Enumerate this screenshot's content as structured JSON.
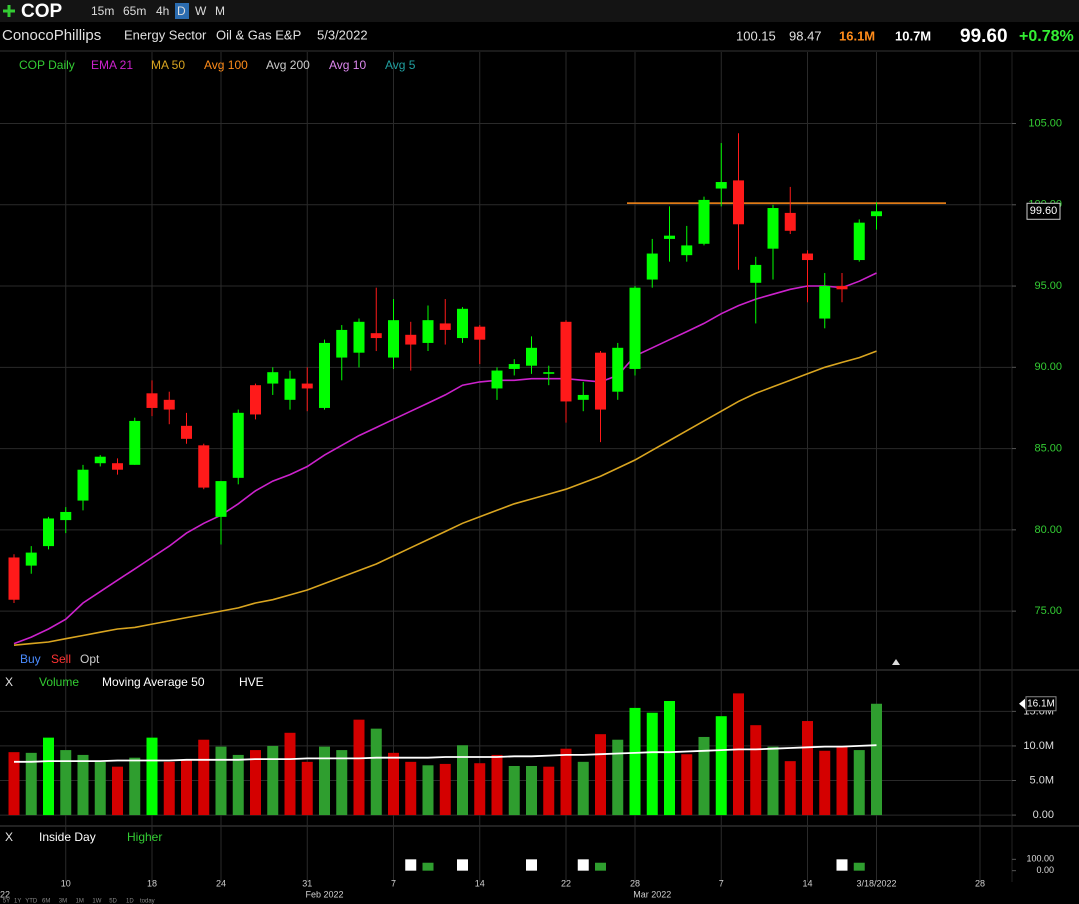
{
  "toolbar": {
    "symbol": "COP",
    "intervals": [
      "15m",
      "65m",
      "4h",
      "D",
      "W",
      "M"
    ],
    "active_interval": "D"
  },
  "header": {
    "company": "ConocoPhillips",
    "sector": "Energy Sector",
    "industry": "Oil & Gas E&P",
    "date": "5/3/2022",
    "high": "100.15",
    "low": "98.47",
    "volume": "16.1M",
    "avg_volume": "10.7M",
    "last": "99.60",
    "change": "+0.78%"
  },
  "trade_buttons": [
    "Buy",
    "Sell",
    "Opt"
  ],
  "panel_close": "X",
  "range_buttons": [
    "5Y",
    "1Y",
    "YTD",
    "6M",
    "3M",
    "1M",
    "1W",
    "5D",
    "1D",
    "today"
  ],
  "chart_data": [
    {
      "type": "candlestick",
      "name": "COP Daily",
      "color": "#33cc33",
      "up_color": "#00ff00",
      "down_color": "#ff1a1a",
      "categories": [
        null,
        null,
        null,
        "10",
        null,
        null,
        null,
        null,
        "18",
        null,
        null,
        null,
        "24",
        null,
        null,
        null,
        null,
        "31",
        null,
        null,
        null,
        null,
        "7",
        null,
        null,
        null,
        null,
        "14",
        null,
        null,
        null,
        null,
        "22",
        null,
        null,
        null,
        "28",
        null,
        null,
        null,
        null,
        "7",
        null,
        null,
        null,
        null,
        "14",
        null,
        null,
        null,
        "3/18/2022",
        null,
        null,
        null,
        null,
        null,
        "28",
        null
      ],
      "period_labels": [
        "22",
        null,
        null,
        null,
        null,
        null,
        null,
        null,
        null,
        null,
        null,
        null,
        null,
        null,
        null,
        null,
        null,
        null,
        "Feb 2022",
        null,
        null,
        null,
        null,
        null,
        null,
        null,
        null,
        null,
        null,
        null,
        null,
        null,
        null,
        null,
        null,
        null,
        null,
        "Mar 2022",
        null,
        null,
        null,
        null,
        null,
        null,
        null,
        null,
        null,
        null,
        null,
        null,
        null,
        null,
        null,
        null,
        null,
        null,
        null,
        null
      ],
      "open": [
        78.3,
        77.8,
        79.0,
        80.6,
        81.8,
        84.1,
        84.1,
        84.0,
        88.4,
        88.0,
        86.4,
        85.2,
        80.8,
        83.2,
        88.9,
        89.0,
        88.0,
        89.0,
        87.5,
        90.6,
        90.9,
        92.1,
        90.6,
        92.0,
        91.5,
        92.7,
        91.8,
        92.5,
        88.7,
        89.9,
        90.1,
        89.6,
        92.8,
        88.0,
        90.9,
        88.5,
        89.9,
        95.4,
        97.9,
        96.9,
        97.6,
        101.0,
        101.5,
        95.2,
        97.3,
        99.5,
        97.0,
        93.0,
        95.0,
        96.6,
        99.3,
        null,
        null,
        null,
        null,
        null,
        null,
        null
      ],
      "high": [
        78.5,
        79.0,
        80.8,
        81.4,
        84.0,
        84.6,
        84.4,
        86.9,
        89.2,
        88.5,
        87.2,
        85.3,
        83.0,
        87.4,
        89.0,
        90.0,
        89.8,
        90.0,
        91.7,
        92.6,
        93.0,
        94.9,
        94.2,
        92.8,
        93.8,
        94.2,
        93.7,
        92.6,
        90.0,
        90.5,
        91.9,
        90.1,
        92.9,
        89.1,
        91.0,
        91.5,
        95.0,
        97.9,
        99.9,
        98.7,
        100.5,
        103.8,
        104.4,
        96.8,
        100.0,
        101.1,
        97.2,
        95.8,
        95.8,
        99.1,
        100.15,
        null,
        null,
        null,
        null,
        null,
        null,
        null
      ],
      "low": [
        75.5,
        77.3,
        78.8,
        79.8,
        81.2,
        83.9,
        83.4,
        84.0,
        87.0,
        86.5,
        85.3,
        82.5,
        79.1,
        82.8,
        86.8,
        88.3,
        87.4,
        87.3,
        87.4,
        89.2,
        90.0,
        91.0,
        89.9,
        89.8,
        91.0,
        91.4,
        91.5,
        90.2,
        88.0,
        89.5,
        89.6,
        88.9,
        86.6,
        87.3,
        85.4,
        88.0,
        89.5,
        94.9,
        96.5,
        96.5,
        97.5,
        99.9,
        96.0,
        92.7,
        95.4,
        98.2,
        94.0,
        92.4,
        94.0,
        96.5,
        98.47,
        null,
        null,
        null,
        null,
        null,
        null,
        null
      ],
      "close": [
        75.7,
        78.6,
        80.7,
        81.1,
        83.7,
        84.5,
        83.7,
        86.7,
        87.5,
        87.4,
        85.6,
        82.6,
        83.0,
        87.2,
        87.1,
        89.7,
        89.3,
        88.7,
        91.5,
        92.3,
        92.8,
        91.8,
        92.9,
        91.4,
        92.9,
        92.3,
        93.6,
        91.7,
        89.8,
        90.2,
        91.2,
        89.7,
        87.9,
        88.3,
        87.4,
        91.2,
        94.9,
        97.0,
        98.1,
        97.5,
        100.3,
        101.4,
        98.8,
        96.3,
        99.8,
        98.4,
        96.6,
        95.0,
        94.8,
        98.9,
        99.6,
        null,
        null,
        null,
        null,
        null,
        null,
        null
      ],
      "series": [
        {
          "name": "EMA 21",
          "color": "#cc22cc",
          "values": [
            73.0,
            73.4,
            73.9,
            74.5,
            75.5,
            76.2,
            76.9,
            77.6,
            78.3,
            79.0,
            79.8,
            80.4,
            80.9,
            81.6,
            82.4,
            83.0,
            83.4,
            83.9,
            84.6,
            85.2,
            85.8,
            86.3,
            86.8,
            87.3,
            87.8,
            88.3,
            88.9,
            89.1,
            89.2,
            89.2,
            89.3,
            89.3,
            89.3,
            89.2,
            89.1,
            89.5,
            90.7,
            91.2,
            91.7,
            92.2,
            92.7,
            93.3,
            93.8,
            94.2,
            94.5,
            94.8,
            95.0,
            95.0,
            94.9,
            95.3,
            95.8,
            null,
            null,
            null,
            null,
            null,
            null,
            null
          ]
        },
        {
          "name": "MA 50",
          "color": "#d9a520",
          "values": [
            72.9,
            73.0,
            73.1,
            73.3,
            73.5,
            73.7,
            73.9,
            74.0,
            74.2,
            74.4,
            74.6,
            74.8,
            75.0,
            75.2,
            75.5,
            75.7,
            76.0,
            76.3,
            76.7,
            77.1,
            77.5,
            77.9,
            78.4,
            78.9,
            79.4,
            79.9,
            80.4,
            80.8,
            81.2,
            81.6,
            81.9,
            82.2,
            82.5,
            82.9,
            83.3,
            83.8,
            84.3,
            84.9,
            85.5,
            86.1,
            86.7,
            87.3,
            87.9,
            88.4,
            88.8,
            89.2,
            89.6,
            90.0,
            90.3,
            90.6,
            91.0,
            null,
            null,
            null,
            null,
            null,
            null,
            null
          ]
        }
      ],
      "inactive_indicators": [
        {
          "name": "Avg 100",
          "color": "#ff8c1a"
        },
        {
          "name": "Avg 200",
          "color": "#cccccc"
        },
        {
          "name": "Avg 10",
          "color": "#dd88ee"
        },
        {
          "name": "Avg 5",
          "color": "#20a0a0"
        }
      ],
      "hline": {
        "value": 100.1,
        "color": "#ff8c1a"
      },
      "last_price": {
        "value": 99.6,
        "label": "99.60"
      },
      "ylim": [
        71.5,
        109.4
      ],
      "yticks": [
        {
          "value": 75,
          "label": "75.00"
        },
        {
          "value": 80,
          "label": "80.00"
        },
        {
          "value": 85,
          "label": "85.00"
        },
        {
          "value": 90,
          "label": "90.00"
        },
        {
          "value": 95,
          "label": "95.00"
        },
        {
          "value": 100,
          "label": "100.00"
        },
        {
          "value": 105,
          "label": "105.00"
        }
      ],
      "grid": true
    },
    {
      "type": "bar",
      "series": [
        {
          "name": "Volume",
          "color": "#33cc33",
          "values": [
            9.1,
            9.0,
            11.2,
            9.4,
            8.7,
            7.7,
            7.0,
            8.3,
            11.2,
            7.7,
            8.0,
            10.9,
            9.9,
            8.7,
            9.4,
            10.0,
            11.9,
            7.7,
            9.9,
            9.4,
            13.8,
            12.5,
            9.0,
            7.7,
            7.2,
            7.4,
            10.1,
            7.5,
            8.7,
            7.1,
            7.1,
            7.0,
            9.6,
            7.7,
            11.7,
            10.9,
            15.5,
            14.8,
            16.5,
            8.8,
            11.3,
            14.3,
            17.6,
            13.0,
            9.9,
            7.8,
            13.6,
            9.3,
            9.9,
            9.4,
            16.1,
            null,
            null,
            null,
            null,
            null,
            null,
            null
          ],
          "colors": [
            "#d40000",
            "#2f9e2f",
            "#00ff00",
            "#2f9e2f",
            "#2f9e2f",
            "#2f9e2f",
            "#d40000",
            "#2f9e2f",
            "#00ff00",
            "#d40000",
            "#d40000",
            "#d40000",
            "#2f9e2f",
            "#2f9e2f",
            "#d40000",
            "#2f9e2f",
            "#d40000",
            "#d40000",
            "#2f9e2f",
            "#2f9e2f",
            "#d40000",
            "#2f9e2f",
            "#d40000",
            "#d40000",
            "#2f9e2f",
            "#d40000",
            "#2f9e2f",
            "#d40000",
            "#d40000",
            "#2f9e2f",
            "#2f9e2f",
            "#d40000",
            "#d40000",
            "#2f9e2f",
            "#d40000",
            "#2f9e2f",
            "#00ff00",
            "#00ff00",
            "#00ff00",
            "#d40000",
            "#2f9e2f",
            "#00ff00",
            "#d40000",
            "#d40000",
            "#2f9e2f",
            "#d40000",
            "#d40000",
            "#d40000",
            "#d40000",
            "#2f9e2f",
            "#2f9e2f",
            null,
            null,
            null,
            null,
            null,
            null,
            null
          ]
        },
        {
          "name": "Moving Average 50",
          "type": "line",
          "color": "#ffffff",
          "values": [
            7.7,
            7.7,
            7.8,
            7.8,
            7.8,
            7.8,
            7.9,
            7.9,
            7.9,
            7.9,
            8.0,
            8.0,
            8.0,
            8.0,
            8.1,
            8.1,
            8.1,
            8.2,
            8.2,
            8.2,
            8.2,
            8.3,
            8.3,
            8.3,
            8.3,
            8.4,
            8.4,
            8.4,
            8.4,
            8.5,
            8.5,
            8.6,
            8.7,
            8.7,
            8.8,
            8.9,
            9.0,
            9.1,
            9.1,
            9.2,
            9.3,
            9.4,
            9.5,
            9.5,
            9.6,
            9.7,
            9.8,
            9.9,
            9.9,
            10.0,
            10.1,
            null,
            null,
            null,
            null,
            null,
            null,
            null
          ]
        }
      ],
      "inactive_indicators": [
        {
          "name": "HVE",
          "color": "#ffffff"
        }
      ],
      "last_value": {
        "value": 16.1,
        "label": "16.1M"
      },
      "ylim": [
        -1.0,
        17.8
      ],
      "yticks": [
        {
          "value": 0,
          "label": "0.00"
        },
        {
          "value": 5,
          "label": "5.0M"
        },
        {
          "value": 10,
          "label": "10.0M"
        },
        {
          "value": 15,
          "label": "15.0M"
        }
      ],
      "grid": true
    },
    {
      "type": "bar",
      "series": [
        {
          "name": "Inside Day",
          "color": "#ffffff",
          "values": [
            0,
            0,
            0,
            0,
            0,
            0,
            0,
            0,
            0,
            0,
            0,
            0,
            0,
            0,
            0,
            0,
            0,
            0,
            0,
            0,
            0,
            0,
            0,
            100,
            0,
            0,
            100,
            0,
            0,
            0,
            100,
            0,
            0,
            100,
            0,
            0,
            0,
            0,
            0,
            0,
            0,
            0,
            0,
            0,
            0,
            0,
            0,
            0,
            100,
            0,
            0,
            null,
            null,
            null,
            null,
            null,
            null,
            null
          ]
        },
        {
          "name": "Higher",
          "color": "#2f9e2f",
          "values": [
            0,
            0,
            0,
            0,
            0,
            0,
            0,
            0,
            0,
            0,
            0,
            0,
            0,
            0,
            0,
            0,
            0,
            0,
            0,
            0,
            0,
            0,
            0,
            0,
            70,
            0,
            0,
            0,
            0,
            0,
            0,
            0,
            0,
            0,
            70,
            0,
            0,
            0,
            0,
            0,
            0,
            0,
            0,
            0,
            0,
            0,
            0,
            0,
            0,
            70,
            0,
            null,
            null,
            null,
            null,
            null,
            null,
            null
          ]
        }
      ],
      "ylim": [
        -100,
        200
      ],
      "yticks": [
        {
          "value": 0,
          "label": "0.00"
        },
        {
          "value": 100,
          "label": "100.00"
        }
      ]
    }
  ]
}
